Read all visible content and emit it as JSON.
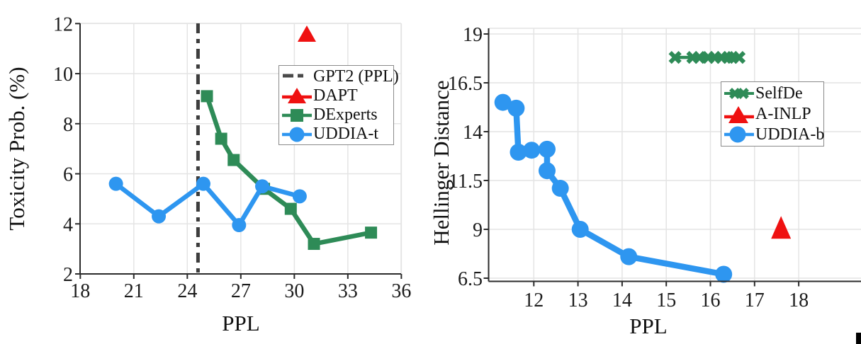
{
  "page": {
    "background": "#ffffff"
  },
  "colors": {
    "blue": "#2e96f0",
    "green": "#2e8b57",
    "red": "#ef1111",
    "axis": "#2b2b2b",
    "grid": "#e4e4e4",
    "dash_line": "#3d3d3d"
  },
  "artifact": {
    "description": "black-corner-block",
    "color": "#000000"
  },
  "chart_data": [
    {
      "id": "toxicity",
      "type": "line",
      "title": "",
      "xlabel": "PPL",
      "ylabel": "Toxicity Prob. (%)",
      "xlim": [
        18,
        36
      ],
      "ylim": [
        2,
        12
      ],
      "xticks": [
        18,
        21,
        24,
        27,
        30,
        33,
        36
      ],
      "yticks": [
        2,
        4,
        6,
        8,
        10,
        12
      ],
      "grid": true,
      "legend_position": "upper right",
      "reference_line": {
        "label": "GPT2 (PPL)",
        "axis": "x",
        "value": 24.6,
        "style": "dash-dot",
        "color": "#3d3d3d"
      },
      "series": [
        {
          "name": "DAPT",
          "marker": "triangle",
          "color": "#ef1111",
          "line": false,
          "points": [
            [
              30.7,
              11.6
            ]
          ]
        },
        {
          "name": "DExperts",
          "marker": "square",
          "color": "#2e8b57",
          "line": true,
          "points": [
            [
              25.1,
              9.1
            ],
            [
              25.9,
              7.4
            ],
            [
              26.6,
              6.55
            ],
            [
              28.3,
              5.4
            ],
            [
              29.8,
              4.6
            ],
            [
              31.1,
              3.2
            ],
            [
              34.3,
              3.65
            ]
          ]
        },
        {
          "name": "UDDIA-t",
          "marker": "circle",
          "color": "#2e96f0",
          "line": true,
          "points": [
            [
              20.0,
              5.6
            ],
            [
              22.4,
              4.3
            ],
            [
              24.9,
              5.6
            ],
            [
              26.9,
              3.95
            ],
            [
              28.2,
              5.5
            ],
            [
              30.3,
              5.1
            ]
          ]
        }
      ],
      "legend": {
        "entries": [
          {
            "label": "GPT2 (PPL)",
            "marker": "dashed-line"
          },
          {
            "label": "DAPT",
            "marker": "triangle"
          },
          {
            "label": "DExperts",
            "marker": "square"
          },
          {
            "label": "UDDIA-t",
            "marker": "circle"
          }
        ]
      }
    },
    {
      "id": "hellinger",
      "type": "line",
      "title": "",
      "xlabel": "PPL",
      "ylabel": "Hellinger Distance",
      "xlim": [
        11.05,
        19.4
      ],
      "ylim": [
        6.35,
        19.2
      ],
      "xticks": [
        12,
        13,
        14,
        15,
        16,
        17,
        18
      ],
      "yticks": [
        6.5,
        9,
        11.5,
        14,
        16.5,
        19
      ],
      "grid": true,
      "legend_position": "upper right",
      "series": [
        {
          "name": "SelfDe",
          "marker": "x",
          "color": "#2e8b57",
          "line": true,
          "points": [
            [
              15.2,
              17.8
            ],
            [
              15.6,
              17.8
            ],
            [
              15.75,
              17.8
            ],
            [
              15.95,
              17.8
            ],
            [
              16.1,
              17.8
            ],
            [
              16.25,
              17.8
            ],
            [
              16.4,
              17.8
            ],
            [
              16.5,
              17.8
            ],
            [
              16.65,
              17.8
            ]
          ]
        },
        {
          "name": "A-INLP",
          "marker": "triangle",
          "color": "#ef1111",
          "line": false,
          "points": [
            [
              17.6,
              9.1
            ]
          ]
        },
        {
          "name": "UDDIA-b",
          "marker": "circle",
          "color": "#2e96f0",
          "line": true,
          "points": [
            [
              11.3,
              15.5
            ],
            [
              11.6,
              15.2
            ],
            [
              11.65,
              12.95
            ],
            [
              11.95,
              13.05
            ],
            [
              12.3,
              13.1
            ],
            [
              12.3,
              12.0
            ],
            [
              12.6,
              11.1
            ],
            [
              13.05,
              9.0
            ],
            [
              14.15,
              7.6
            ],
            [
              16.3,
              6.7
            ]
          ]
        }
      ],
      "legend": {
        "entries": [
          {
            "label": "SelfDe",
            "marker": "x"
          },
          {
            "label": "A-INLP",
            "marker": "triangle"
          },
          {
            "label": "UDDIA-b",
            "marker": "circle"
          }
        ]
      }
    }
  ]
}
